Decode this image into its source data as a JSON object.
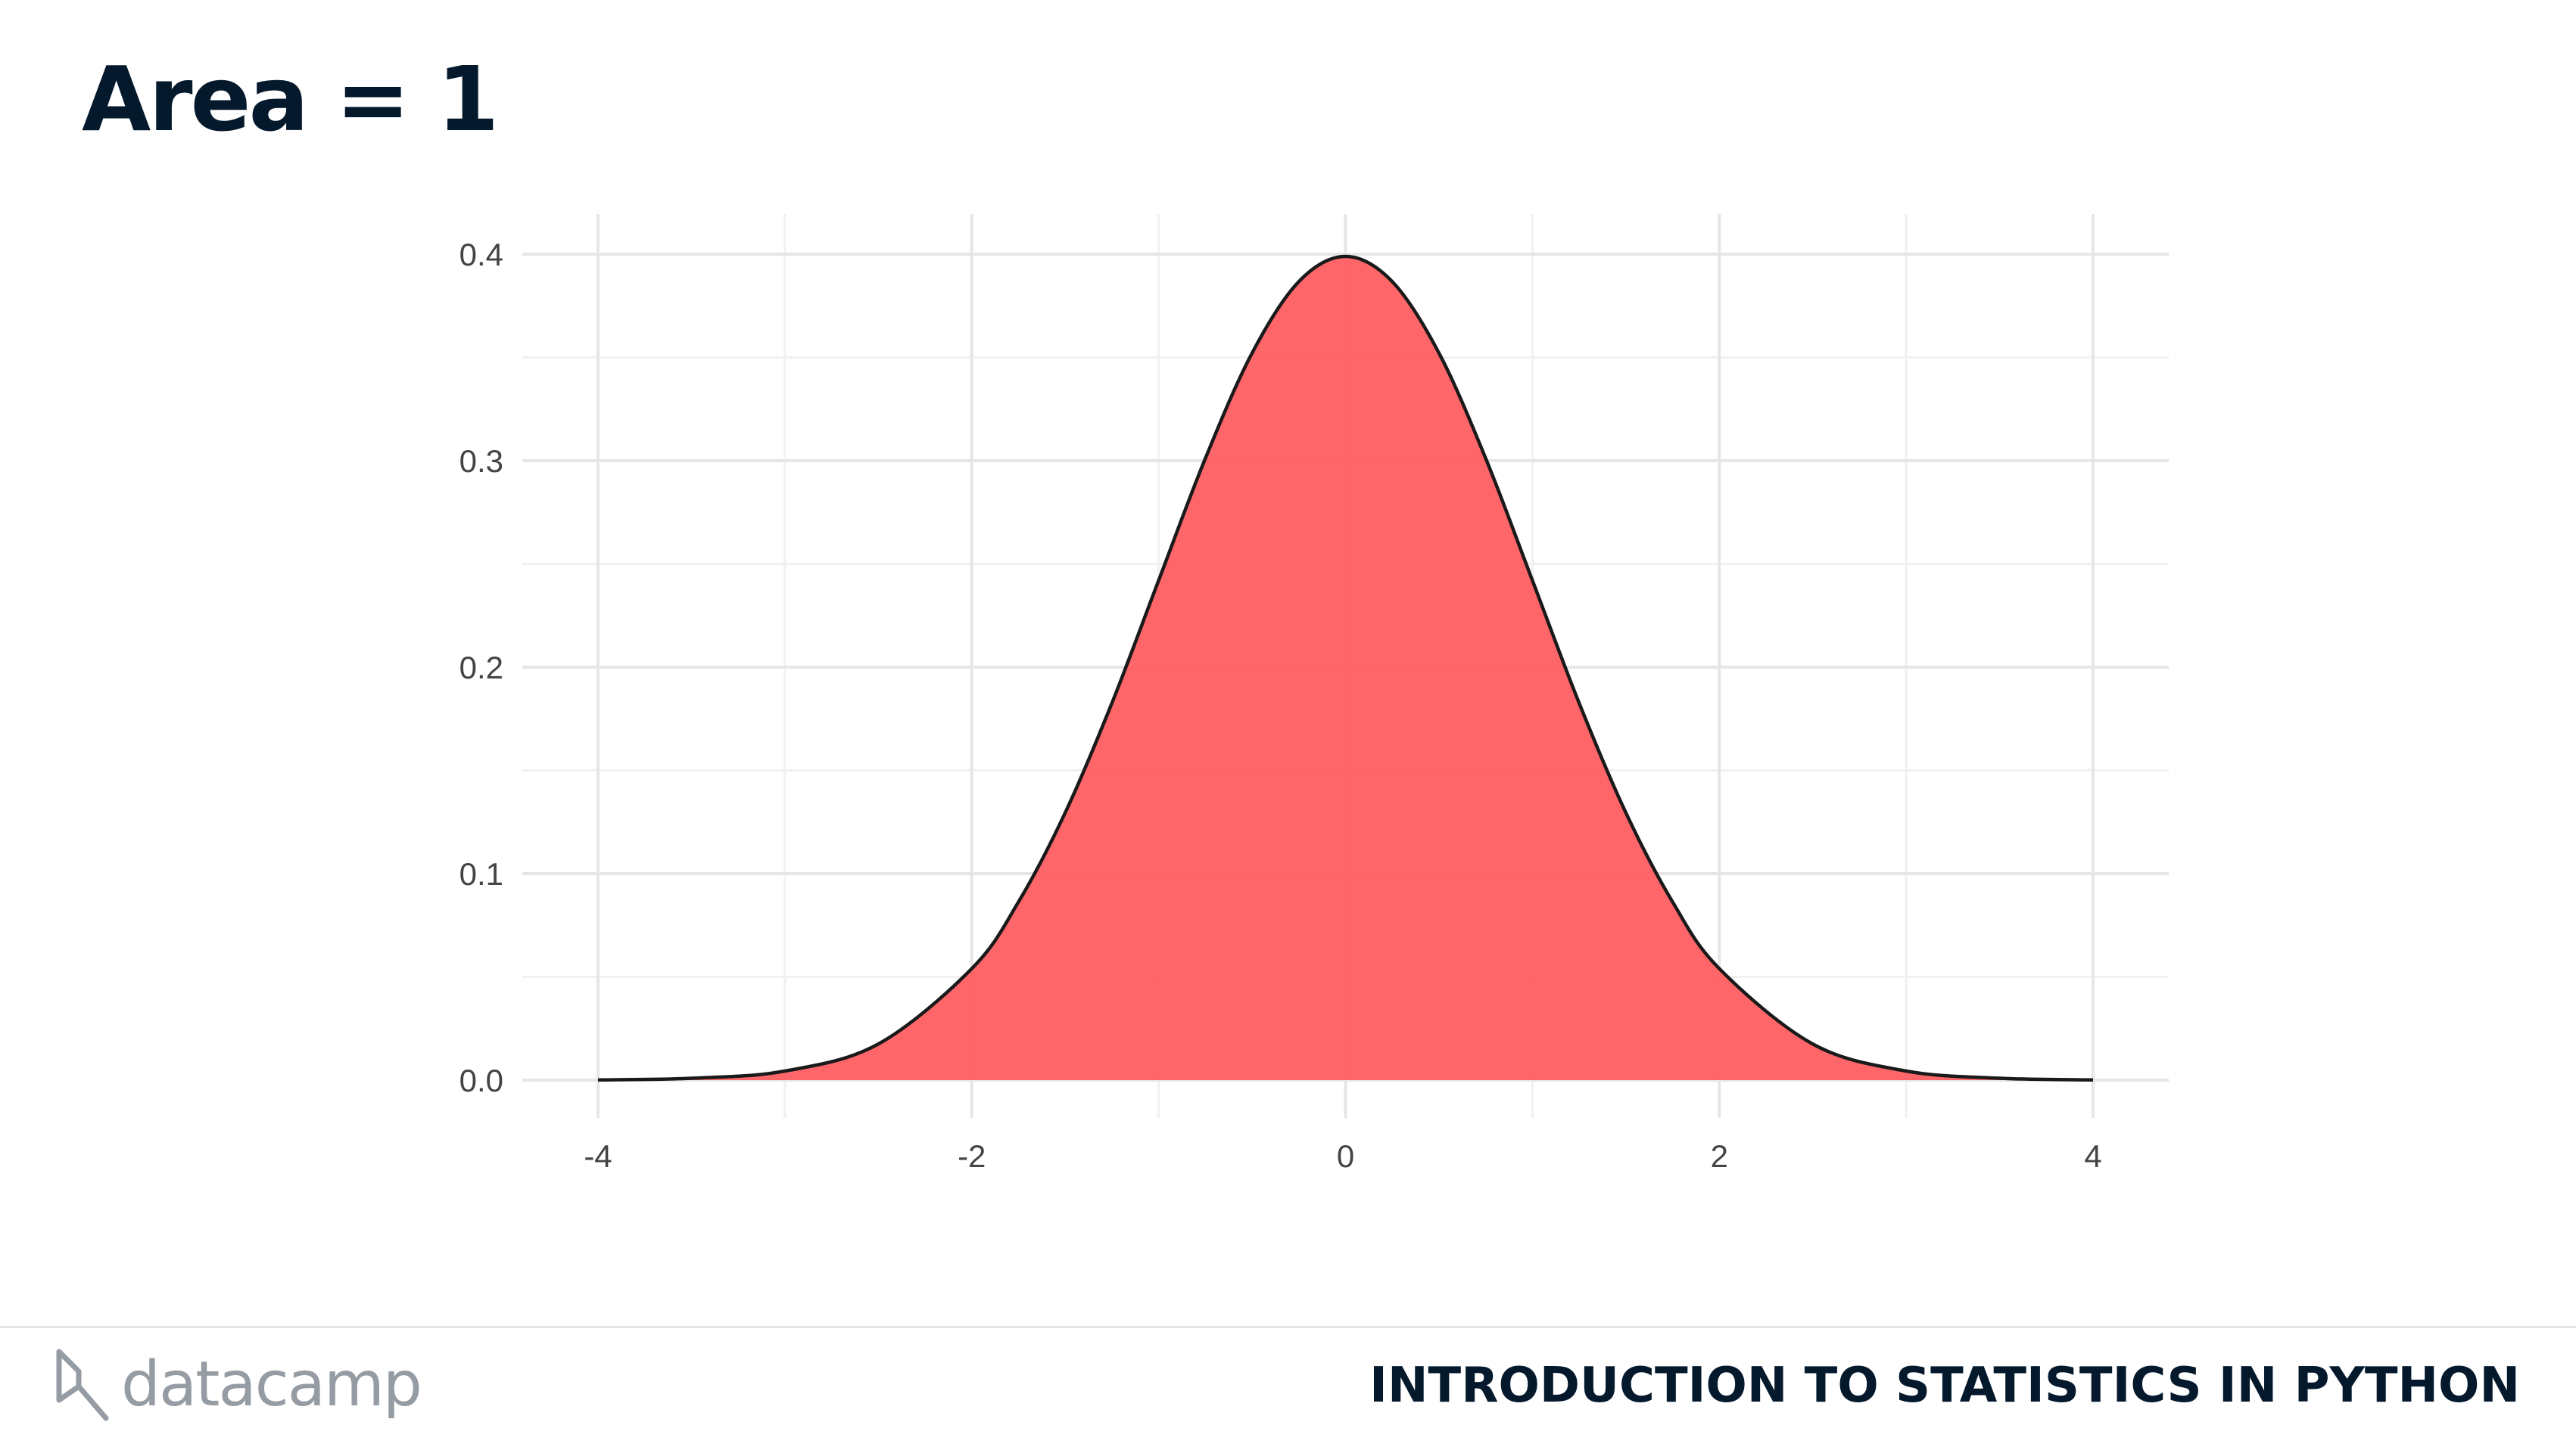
{
  "slide": {
    "title": "Area = 1"
  },
  "footer": {
    "logo_text": "datacamp",
    "course_title": "INTRODUCTION TO STATISTICS IN PYTHON"
  },
  "chart_data": {
    "type": "area",
    "title": "",
    "xlabel": "",
    "ylabel": "",
    "xlim": [
      -4,
      4
    ],
    "ylim": [
      0,
      0.4
    ],
    "xticks": [
      -4,
      -2,
      0,
      2,
      4
    ],
    "xtick_labels": [
      "-4",
      "-2",
      "0",
      "2",
      "4"
    ],
    "yticks": [
      0.0,
      0.1,
      0.2,
      0.3,
      0.4
    ],
    "ytick_labels": [
      "0.0",
      "0.1",
      "0.2",
      "0.3",
      "0.4"
    ],
    "grid": true,
    "legend": "none",
    "fill_color": "#ff5a5f",
    "line_color": "#1a1a1a",
    "series": [
      {
        "x": [
          -4,
          -3.5,
          -3,
          -2.5,
          -2,
          -1.75,
          -1.5,
          -1.25,
          -1,
          -0.75,
          -0.5,
          -0.25,
          0,
          0.25,
          0.5,
          0.75,
          1,
          1.25,
          1.5,
          1.75,
          2,
          2.5,
          3,
          3.5,
          4
        ],
        "y": [
          0.0001,
          0.0009,
          0.0044,
          0.0175,
          0.054,
          0.0863,
          0.1295,
          0.1826,
          0.242,
          0.3011,
          0.3521,
          0.3867,
          0.3989,
          0.3867,
          0.3521,
          0.3011,
          0.242,
          0.1826,
          0.1295,
          0.0863,
          0.054,
          0.0175,
          0.0044,
          0.0009,
          0.0001
        ]
      }
    ]
  }
}
